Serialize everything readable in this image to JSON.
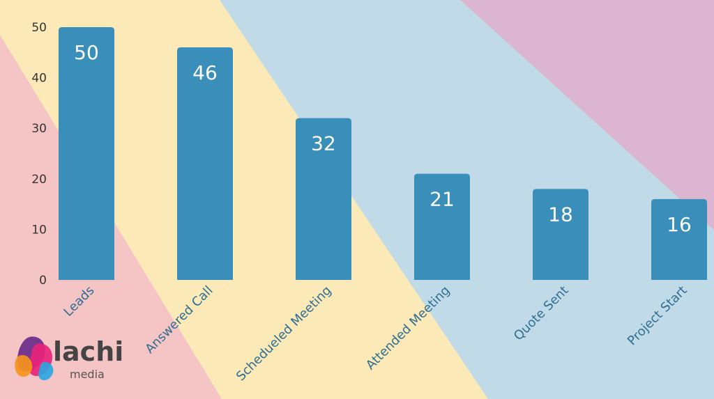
{
  "chart_data": {
    "type": "bar",
    "categories": [
      "Leads",
      "Answered Call",
      "Schedueled Meeting",
      "Attended Meeting",
      "Quote Sent",
      "Project Start"
    ],
    "values": [
      50,
      46,
      32,
      21,
      18,
      16
    ],
    "title": "",
    "xlabel": "",
    "ylabel": "",
    "ylim": [
      0,
      50
    ],
    "yticks": [
      0,
      10,
      20,
      30,
      40,
      50
    ],
    "grid": false,
    "legend": "none",
    "data_labels": true,
    "bar_color": "#3a8fba",
    "background_bands": [
      "#f5c4c4",
      "#fbe9b8",
      "#c0dae8",
      "#dcb5d0"
    ]
  },
  "logo": {
    "word": "lachi",
    "sub": "media",
    "colors": [
      "#6a2a8a",
      "#e8237a",
      "#f7941d",
      "#2aa7df"
    ]
  }
}
